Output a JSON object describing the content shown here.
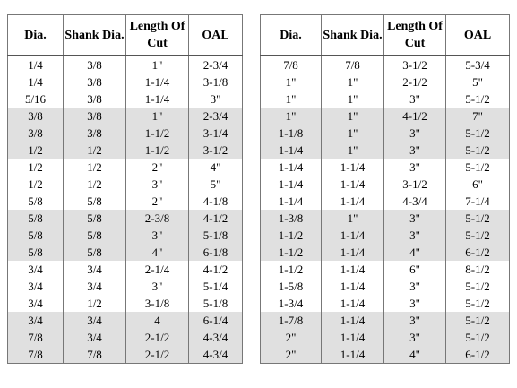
{
  "tables": [
    {
      "headers": [
        "Dia.",
        "Shank Dia.",
        "Length Of Cut",
        "OAL"
      ],
      "rows": [
        [
          "1/4",
          "3/8",
          "1\"",
          "2-3/4"
        ],
        [
          "1/4",
          "3/8",
          "1-1/4",
          "3-1/8"
        ],
        [
          "5/16",
          "3/8",
          "1-1/4",
          "3\""
        ],
        [
          "3/8",
          "3/8",
          "1\"",
          "2-3/4"
        ],
        [
          "3/8",
          "3/8",
          "1-1/2",
          "3-1/4"
        ],
        [
          "1/2",
          "1/2",
          "1-1/2",
          "3-1/2"
        ],
        [
          "1/2",
          "1/2",
          "2\"",
          "4\""
        ],
        [
          "1/2",
          "1/2",
          "3\"",
          "5\""
        ],
        [
          "5/8",
          "5/8",
          "2\"",
          "4-1/8"
        ],
        [
          "5/8",
          "5/8",
          "2-3/8",
          "4-1/2"
        ],
        [
          "5/8",
          "5/8",
          "3\"",
          "5-1/8"
        ],
        [
          "5/8",
          "5/8",
          "4\"",
          "6-1/8"
        ],
        [
          "3/4",
          "3/4",
          "2-1/4",
          "4-1/2"
        ],
        [
          "3/4",
          "3/4",
          "3\"",
          "5-1/4"
        ],
        [
          "3/4",
          "1/2",
          "3-1/8",
          "5-1/8"
        ],
        [
          "3/4",
          "3/4",
          "4",
          "6-1/4"
        ],
        [
          "7/8",
          "3/4",
          "2-1/2",
          "4-3/4"
        ],
        [
          "7/8",
          "7/8",
          "2-1/2",
          "4-3/4"
        ]
      ]
    },
    {
      "headers": [
        "Dia.",
        "Shank Dia.",
        "Length Of Cut",
        "OAL"
      ],
      "rows": [
        [
          "7/8",
          "7/8",
          "3-1/2",
          "5-3/4"
        ],
        [
          "1\"",
          "1\"",
          "2-1/2",
          "5\""
        ],
        [
          "1\"",
          "1\"",
          "3\"",
          "5-1/2"
        ],
        [
          "1\"",
          "1\"",
          "4-1/2",
          "7\""
        ],
        [
          "1-1/8",
          "1\"",
          "3\"",
          "5-1/2"
        ],
        [
          "1-1/4",
          "1\"",
          "3\"",
          "5-1/2"
        ],
        [
          "1-1/4",
          "1-1/4",
          "3\"",
          "5-1/2"
        ],
        [
          "1-1/4",
          "1-1/4",
          "3-1/2",
          "6\""
        ],
        [
          "1-1/4",
          "1-1/4",
          "4-3/4",
          "7-1/4"
        ],
        [
          "1-3/8",
          "1\"",
          "3\"",
          "5-1/2"
        ],
        [
          "1-1/2",
          "1-1/4",
          "3\"",
          "5-1/2"
        ],
        [
          "1-1/2",
          "1-1/4",
          "4\"",
          "6-1/2"
        ],
        [
          "1-1/2",
          "1-1/4",
          "6\"",
          "8-1/2"
        ],
        [
          "1-5/8",
          "1-1/4",
          "3\"",
          "5-1/2"
        ],
        [
          "1-3/4",
          "1-1/4",
          "3\"",
          "5-1/2"
        ],
        [
          "1-7/8",
          "1-1/4",
          "3\"",
          "5-1/2"
        ],
        [
          "2\"",
          "1-1/4",
          "3\"",
          "5-1/2"
        ],
        [
          "2\"",
          "1-1/4",
          "4\"",
          "6-1/2"
        ]
      ]
    }
  ]
}
